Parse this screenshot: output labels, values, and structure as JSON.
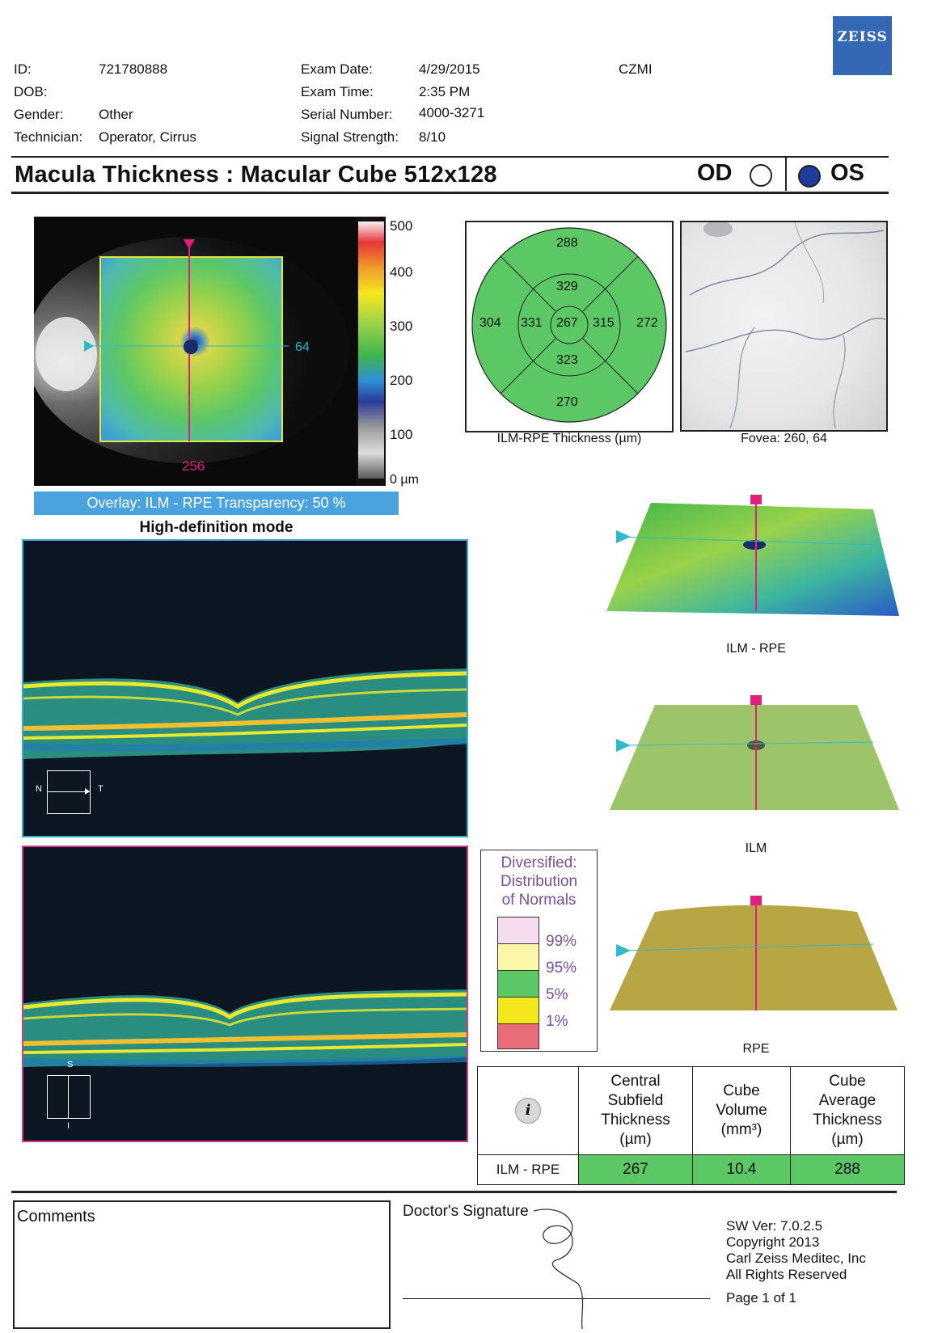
{
  "brand": {
    "logo": "ZEISS"
  },
  "header": {
    "id_label": "ID:",
    "id_value": "721780888",
    "dob_label": "DOB:",
    "dob_value": "",
    "gender_label": "Gender:",
    "gender_value": "Other",
    "technician_label": "Technician:",
    "technician_value": "Operator, Cirrus",
    "exam_date_label": "Exam Date:",
    "exam_date_value": "4/29/2015",
    "exam_time_label": "Exam Time:",
    "exam_time_value": "2:35 PM",
    "serial_label": "Serial Number:",
    "serial_value": "4000-3271",
    "signal_label": "Signal Strength:",
    "signal_value": "8/10",
    "site": "CZMI"
  },
  "report": {
    "title": "Macula Thickness : Macular Cube 512x128",
    "od_label": "OD",
    "os_label": "OS",
    "selected_eye": "OS"
  },
  "fundus": {
    "scale_ticks": [
      "500",
      "400",
      "300",
      "200",
      "100",
      "0 µm"
    ],
    "horizontal_marker": "64",
    "vertical_marker": "256",
    "overlay_caption": "Overlay: ILM - RPE  Transparency: 50 %",
    "mode_caption": "High-definition mode"
  },
  "etdrs": {
    "outer_superior": "288",
    "inner_superior": "329",
    "outer_nasal": "304",
    "inner_nasal": "331",
    "center": "267",
    "inner_temporal": "315",
    "outer_temporal": "272",
    "inner_inferior": "323",
    "outer_inferior": "270",
    "caption": "ILM-RPE Thickness (µm)",
    "fill_color": "#5cc765"
  },
  "slo": {
    "caption": "Fovea: 260, 64"
  },
  "bscan": {
    "horizontal_orient": {
      "left": "N",
      "right": "T"
    },
    "vertical_orient": {
      "top": "S",
      "bottom": "I"
    }
  },
  "surfaces": {
    "map1_caption": "ILM - RPE",
    "map2_caption": "ILM",
    "map3_caption": "RPE"
  },
  "normals_legend": {
    "title": "Diversified: Distribution of Normals",
    "title_lines": [
      "Diversified:",
      "Distribution",
      "of Normals"
    ],
    "ticks": [
      "99%",
      "95%",
      "5%",
      "1%"
    ],
    "colors": [
      "#f7dcef",
      "#fbf6a8",
      "#5cc765",
      "#f4e81c",
      "#e86d78"
    ]
  },
  "results": {
    "info_icon": "info-icon",
    "col1": "Central Subfield Thickness (µm)",
    "col1_lines": [
      "Central",
      "Subfield",
      "Thickness",
      "(µm)"
    ],
    "col2": "Cube Volume (mm³)",
    "col2_lines": [
      "Cube",
      "Volume",
      "(mm³)"
    ],
    "col3": "Cube Average Thickness (µm)",
    "col3_lines": [
      "Cube",
      "Average",
      "Thickness",
      "(µm)"
    ],
    "row_label": "ILM - RPE",
    "central_subfield": "267",
    "cube_volume": "10.4",
    "cube_average": "288"
  },
  "footer": {
    "comments_label": "Comments",
    "signature_label": "Doctor's Signature",
    "sw_version": "SW Ver: 7.0.2.5",
    "copyright": "Copyright 2013",
    "company": "Carl Zeiss Meditec, Inc",
    "rights": "All Rights Reserved",
    "page": "Page 1 of 1"
  }
}
